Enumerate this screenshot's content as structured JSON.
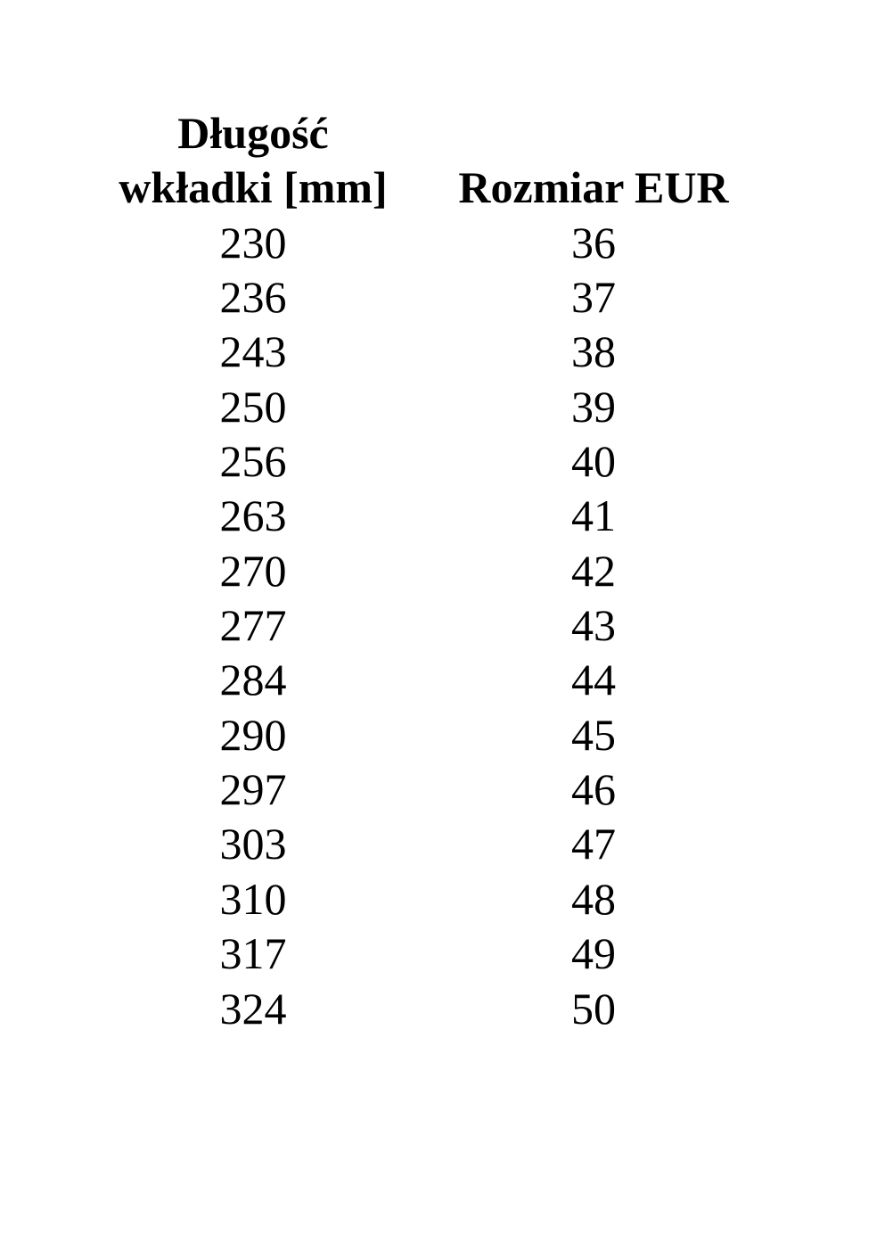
{
  "table": {
    "headers": [
      {
        "line1": "Długość",
        "line2": "wkładki [mm]"
      },
      {
        "line1": "",
        "line2": "Rozmiar EUR"
      }
    ],
    "rows": [
      [
        "230",
        "36"
      ],
      [
        "236",
        "37"
      ],
      [
        "243",
        "38"
      ],
      [
        "250",
        "39"
      ],
      [
        "256",
        "40"
      ],
      [
        "263",
        "41"
      ],
      [
        "270",
        "42"
      ],
      [
        "277",
        "43"
      ],
      [
        "284",
        "44"
      ],
      [
        "290",
        "45"
      ],
      [
        "297",
        "46"
      ],
      [
        "303",
        "47"
      ],
      [
        "310",
        "48"
      ],
      [
        "317",
        "49"
      ],
      [
        "324",
        "50"
      ]
    ]
  }
}
